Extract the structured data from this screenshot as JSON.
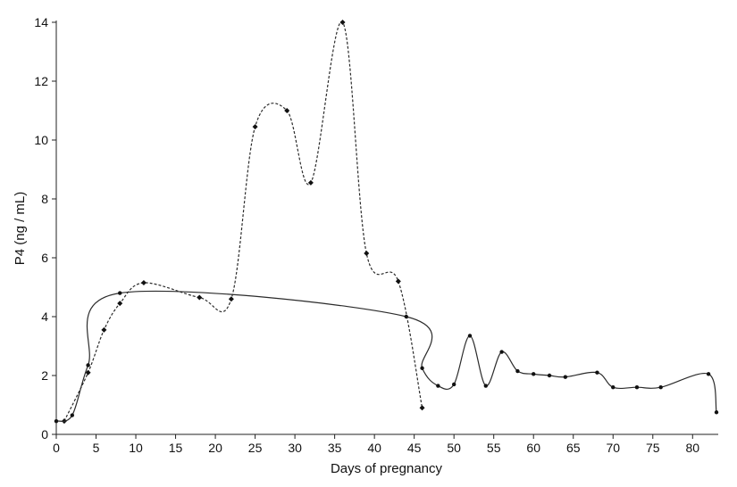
{
  "chart_data": {
    "type": "line",
    "title": "",
    "xlabel": "Days of pregnancy",
    "ylabel": "P4 (ng / mL)",
    "xlim": [
      0,
      83
    ],
    "ylim": [
      0,
      14
    ],
    "xticks": [
      0,
      5,
      10,
      15,
      20,
      25,
      30,
      35,
      40,
      45,
      50,
      55,
      60,
      65,
      70,
      75,
      80
    ],
    "yticks": [
      0,
      2,
      4,
      6,
      8,
      10,
      12,
      14
    ],
    "grid": false,
    "legend": "none",
    "series": [
      {
        "style": "dashed",
        "marker": "diamond",
        "color": "#2b2b2b",
        "x": [
          1,
          4,
          6,
          8,
          11,
          18,
          22,
          25,
          29,
          32,
          36,
          39,
          43,
          46
        ],
        "y": [
          0.45,
          2.1,
          3.55,
          4.45,
          5.15,
          4.65,
          4.6,
          10.45,
          11.0,
          8.55,
          14.0,
          6.15,
          5.2,
          0.9
        ]
      },
      {
        "style": "solid",
        "marker": "circle",
        "color": "#2b2b2b",
        "x": [
          0,
          2,
          4,
          8,
          44,
          46,
          48,
          50,
          52,
          54,
          56,
          58,
          60,
          62,
          64,
          68,
          70,
          73,
          76,
          82,
          83
        ],
        "y": [
          0.45,
          0.65,
          2.35,
          4.8,
          4.0,
          2.25,
          1.65,
          1.7,
          3.35,
          1.65,
          2.8,
          2.15,
          2.05,
          2.0,
          1.95,
          2.1,
          1.6,
          1.6,
          1.6,
          2.05,
          0.75
        ]
      }
    ]
  }
}
